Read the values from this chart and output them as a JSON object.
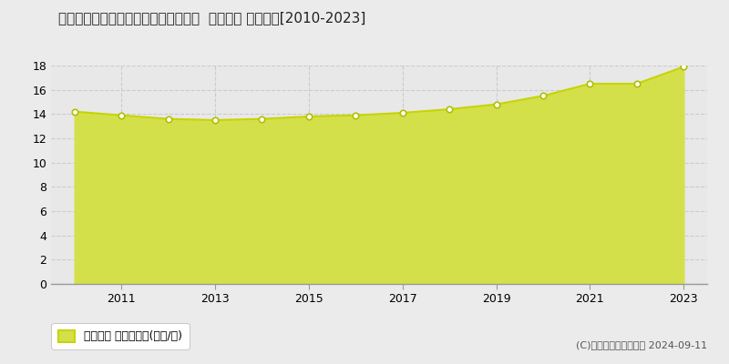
{
  "title": "宮城県岩沼市相の原１丁目３６番１外  地価公示 地価推移[2010-2023]",
  "years": [
    2010,
    2011,
    2012,
    2013,
    2014,
    2015,
    2016,
    2017,
    2018,
    2019,
    2020,
    2021,
    2022,
    2023
  ],
  "values": [
    14.2,
    13.9,
    13.6,
    13.5,
    13.6,
    13.8,
    13.9,
    14.1,
    14.4,
    14.8,
    15.5,
    16.5,
    16.5,
    17.9
  ],
  "line_color": "#c8d400",
  "fill_color": "#d4e04a",
  "marker_facecolor": "white",
  "marker_edgecolor": "#b0c000",
  "bg_color": "#ebebeb",
  "plot_bg_color": "#e8e8e8",
  "grid_color": "#cccccc",
  "ylim": [
    0,
    18
  ],
  "yticks": [
    0,
    2,
    4,
    6,
    8,
    10,
    12,
    14,
    16,
    18
  ],
  "xtick_years": [
    2011,
    2013,
    2015,
    2017,
    2019,
    2021,
    2023
  ],
  "legend_label": "地価公示 平均坪単価(万円/坪)",
  "copyright_text": "(C)土地価格ドットコム 2024-09-11"
}
